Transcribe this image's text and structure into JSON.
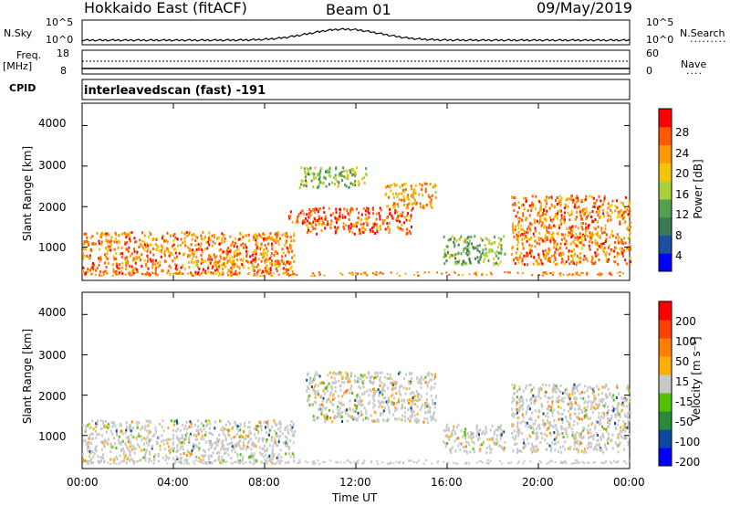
{
  "header": {
    "station": "Hokkaido East (fitACF)",
    "beam": "Beam 01",
    "date": "09/May/2019"
  },
  "colors": {
    "power_scale": [
      "#0000ff",
      "#1b4fa0",
      "#3a7a55",
      "#55a050",
      "#a8d23a",
      "#f5c400",
      "#ff9a00",
      "#ff5a00",
      "#ff0000"
    ],
    "velocity_scale": [
      "#ff0000",
      "#ff4000",
      "#ff8000",
      "#ffb000",
      "#c8c8c8",
      "#50c000",
      "#2a8a3a",
      "#0a4aa0",
      "#0000ff"
    ],
    "line": "#000000"
  },
  "top_panels": {
    "nsky_label": "N.Sky",
    "nsky_ticks": [
      "10^5",
      "10^0"
    ],
    "nsearch_label": "N.Search",
    "nsearch_ticks": [
      "10^5",
      "10^0"
    ],
    "freq_label_1": "Freq.",
    "freq_label_2": "[MHz]",
    "freq_ticks": [
      "18",
      "8"
    ],
    "nave_label": "Nave",
    "nave_ticks": [
      "60",
      "0"
    ],
    "cpid_label": "CPID",
    "cpid_text": "interleavedscan (fast) -191"
  },
  "chart_data": [
    {
      "type": "heatmap",
      "name": "power",
      "ylabel": "Slant Range [km]",
      "x_ticks": [
        "00:00",
        "04:00",
        "08:00",
        "12:00",
        "16:00",
        "20:00",
        "00:00"
      ],
      "xlim_hours": [
        0,
        24
      ],
      "y_ticks": [
        1000,
        2000,
        3000,
        4000
      ],
      "ylim_km": [
        180,
        4550
      ],
      "colorbar": {
        "label": "Power [dB]",
        "ticks": [
          4,
          8,
          12,
          16,
          20,
          24,
          28
        ],
        "range": [
          0,
          30
        ]
      },
      "regions": [
        {
          "t": [
            0.0,
            9.3
          ],
          "r": [
            350,
            1400
          ],
          "level": 24
        },
        {
          "t": [
            9.0,
            10.0
          ],
          "r": [
            1600,
            1950
          ],
          "level": 26
        },
        {
          "t": [
            9.8,
            14.5
          ],
          "r": [
            1350,
            2000
          ],
          "level": 26
        },
        {
          "t": [
            13.2,
            15.5
          ],
          "r": [
            2000,
            2600
          ],
          "level": 22
        },
        {
          "t": [
            15.8,
            18.5
          ],
          "r": [
            600,
            1300
          ],
          "level": 12
        },
        {
          "t": [
            18.8,
            24.0
          ],
          "r": [
            600,
            2300
          ],
          "level": 24
        },
        {
          "t": [
            9.5,
            12.5
          ],
          "r": [
            2500,
            3000
          ],
          "level": 14
        }
      ]
    },
    {
      "type": "heatmap",
      "name": "velocity",
      "ylabel": "Slant Range [km]",
      "x_ticks": [
        "00:00",
        "04:00",
        "08:00",
        "12:00",
        "16:00",
        "20:00",
        "00:00"
      ],
      "xlabel": "Time UT",
      "xlim_hours": [
        0,
        24
      ],
      "y_ticks": [
        1000,
        2000,
        3000,
        4000
      ],
      "ylim_km": [
        180,
        4550
      ],
      "colorbar": {
        "label": "Velocity [m s⁻¹]",
        "ticks": [
          200,
          100,
          50,
          15,
          -15,
          -50,
          -100,
          -200
        ]
      },
      "regions": [
        {
          "t": [
            0.0,
            9.3
          ],
          "r": [
            350,
            1400
          ],
          "level": 0
        },
        {
          "t": [
            9.8,
            15.5
          ],
          "r": [
            1350,
            2600
          ],
          "level": 0
        },
        {
          "t": [
            15.8,
            18.5
          ],
          "r": [
            600,
            1300
          ],
          "level": -15
        },
        {
          "t": [
            18.8,
            24.0
          ],
          "r": [
            600,
            2300
          ],
          "level": 0
        }
      ]
    }
  ]
}
